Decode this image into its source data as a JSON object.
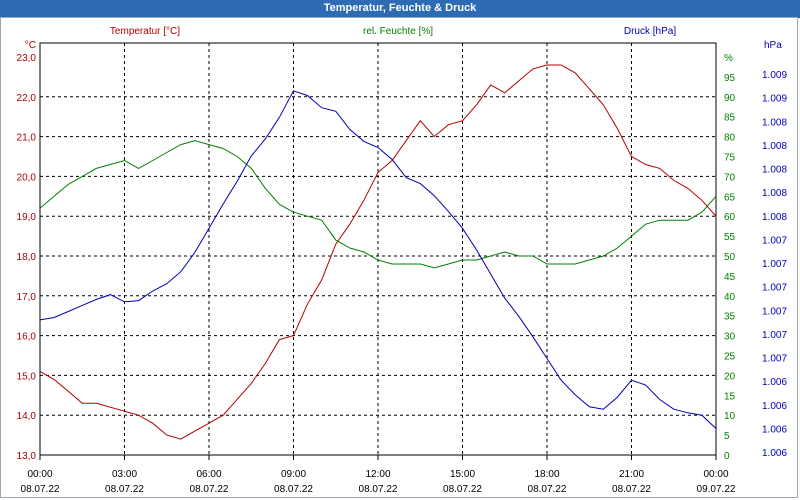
{
  "window": {
    "title": "Temperatur, Feuchte & Druck"
  },
  "colors": {
    "temperature": "#b00000",
    "humidity": "#008000",
    "pressure": "#0000b4",
    "grid": "#000000",
    "titlebar": "#2d6cb5"
  },
  "chart_data": {
    "type": "line",
    "title": "Temperatur, Feuchte & Druck",
    "grid": true,
    "x_ticks": [
      {
        "time": "00:00",
        "date": "08.07.22"
      },
      {
        "time": "03:00",
        "date": "08.07.22"
      },
      {
        "time": "06:00",
        "date": "08.07.22"
      },
      {
        "time": "09:00",
        "date": "08.07.22"
      },
      {
        "time": "12:00",
        "date": "08.07.22"
      },
      {
        "time": "15:00",
        "date": "08.07.22"
      },
      {
        "time": "18:00",
        "date": "08.07.22"
      },
      {
        "time": "21:00",
        "date": "08.07.22"
      },
      {
        "time": "00:00",
        "date": "09.07.22"
      }
    ],
    "xlim": [
      0,
      24
    ],
    "axes": {
      "left": {
        "unit": "°C",
        "ylim": [
          13.0,
          23.0
        ],
        "ticks": [
          "23,0",
          "22,0",
          "21,0",
          "20,0",
          "19,0",
          "18,0",
          "17,0",
          "16,0",
          "15,0",
          "14,0",
          "13,0"
        ]
      },
      "middle": {
        "unit": "%",
        "ylim": [
          0,
          100
        ],
        "ticks": [
          "%",
          "95",
          "90",
          "85",
          "80",
          "75",
          "70",
          "65",
          "60",
          "55",
          "50",
          "45",
          "40",
          "35",
          "30",
          "25",
          "20",
          "15",
          "10",
          "5",
          "0"
        ]
      },
      "right": {
        "unit": "hPa",
        "ticks": [
          "1.009",
          "1.009",
          "1.008",
          "1.008",
          "1.008",
          "1.008",
          "1.008",
          "1.007",
          "1.007",
          "1.007",
          "1.007",
          "1.007",
          "1.007",
          "1.006",
          "1.006",
          "1.006",
          "1.006"
        ]
      }
    },
    "series": [
      {
        "name": "Temperatur [°C]",
        "axis": "left",
        "x": [
          0,
          0.5,
          1,
          1.5,
          2,
          3,
          3.5,
          4,
          4.5,
          5,
          5.5,
          6,
          6.5,
          7,
          7.5,
          8,
          8.5,
          9,
          9.5,
          10,
          10.5,
          11,
          11.5,
          12,
          12.5,
          13,
          13.5,
          14,
          14.5,
          15,
          15.5,
          16,
          16.5,
          17,
          17.5,
          18,
          18.5,
          19,
          19.5,
          20,
          20.5,
          21,
          21.5,
          22,
          22.5,
          23,
          23.5,
          24
        ],
        "values": [
          15.1,
          14.9,
          14.6,
          14.3,
          14.3,
          14.1,
          14.0,
          13.8,
          13.5,
          13.4,
          13.6,
          13.8,
          14.0,
          14.4,
          14.8,
          15.3,
          15.9,
          16.0,
          16.8,
          17.4,
          18.3,
          18.8,
          19.4,
          20.1,
          20.4,
          20.9,
          21.4,
          21.0,
          21.3,
          21.4,
          21.8,
          22.3,
          22.1,
          22.4,
          22.7,
          22.8,
          22.8,
          22.6,
          22.2,
          21.8,
          21.2,
          20.5,
          20.3,
          20.2,
          19.9,
          19.7,
          19.4,
          19.0
        ]
      },
      {
        "name": "rel. Feuchte [%]",
        "axis": "middle",
        "x": [
          0,
          0.5,
          1,
          1.5,
          2,
          2.5,
          3,
          3.5,
          4,
          4.5,
          5,
          5.5,
          6,
          6.5,
          7,
          7.5,
          8,
          8.5,
          9,
          9.5,
          10,
          10.5,
          11,
          11.5,
          12,
          12.5,
          13,
          13.5,
          14,
          14.5,
          15,
          15.5,
          16,
          16.5,
          17,
          17.5,
          18,
          18.5,
          19,
          19.5,
          20,
          20.5,
          21,
          21.5,
          22,
          22.5,
          23,
          23.5,
          24
        ],
        "values": [
          62,
          65,
          68,
          70,
          72,
          73,
          74,
          72,
          74,
          76,
          78,
          79,
          78,
          77,
          75,
          72,
          67,
          63,
          61,
          60,
          59,
          54,
          52,
          51,
          49,
          48,
          48,
          48,
          47,
          48,
          49,
          49,
          50,
          51,
          50,
          50,
          48,
          48,
          48,
          49,
          50,
          52,
          55,
          58,
          59,
          59,
          59,
          61,
          65
        ]
      },
      {
        "name": "Druck [hPa]",
        "axis": "right",
        "x": [
          0,
          0.5,
          1,
          1.5,
          2,
          2.5,
          3,
          3.5,
          4,
          4.5,
          5,
          5.5,
          6,
          6.5,
          7,
          7.5,
          8,
          8.5,
          9,
          9.5,
          10,
          10.5,
          11,
          11.5,
          12,
          12.5,
          13,
          13.5,
          14,
          14.5,
          15,
          15.5,
          16,
          16.5,
          17,
          17.5,
          18,
          18.5,
          19,
          19.5,
          20,
          20.5,
          21,
          21.5,
          22,
          22.5,
          23,
          23.5,
          24
        ],
        "values": [
          1007.02,
          1007.04,
          1007.09,
          1007.14,
          1007.19,
          1007.23,
          1007.17,
          1007.18,
          1007.26,
          1007.32,
          1007.42,
          1007.58,
          1007.78,
          1007.98,
          1008.17,
          1008.38,
          1008.52,
          1008.7,
          1008.92,
          1008.88,
          1008.78,
          1008.75,
          1008.6,
          1008.5,
          1008.45,
          1008.35,
          1008.2,
          1008.15,
          1008.05,
          1007.92,
          1007.78,
          1007.6,
          1007.4,
          1007.2,
          1007.05,
          1006.88,
          1006.7,
          1006.52,
          1006.4,
          1006.3,
          1006.28,
          1006.38,
          1006.52,
          1006.48,
          1006.36,
          1006.28,
          1006.25,
          1006.23,
          1006.12
        ]
      }
    ]
  }
}
